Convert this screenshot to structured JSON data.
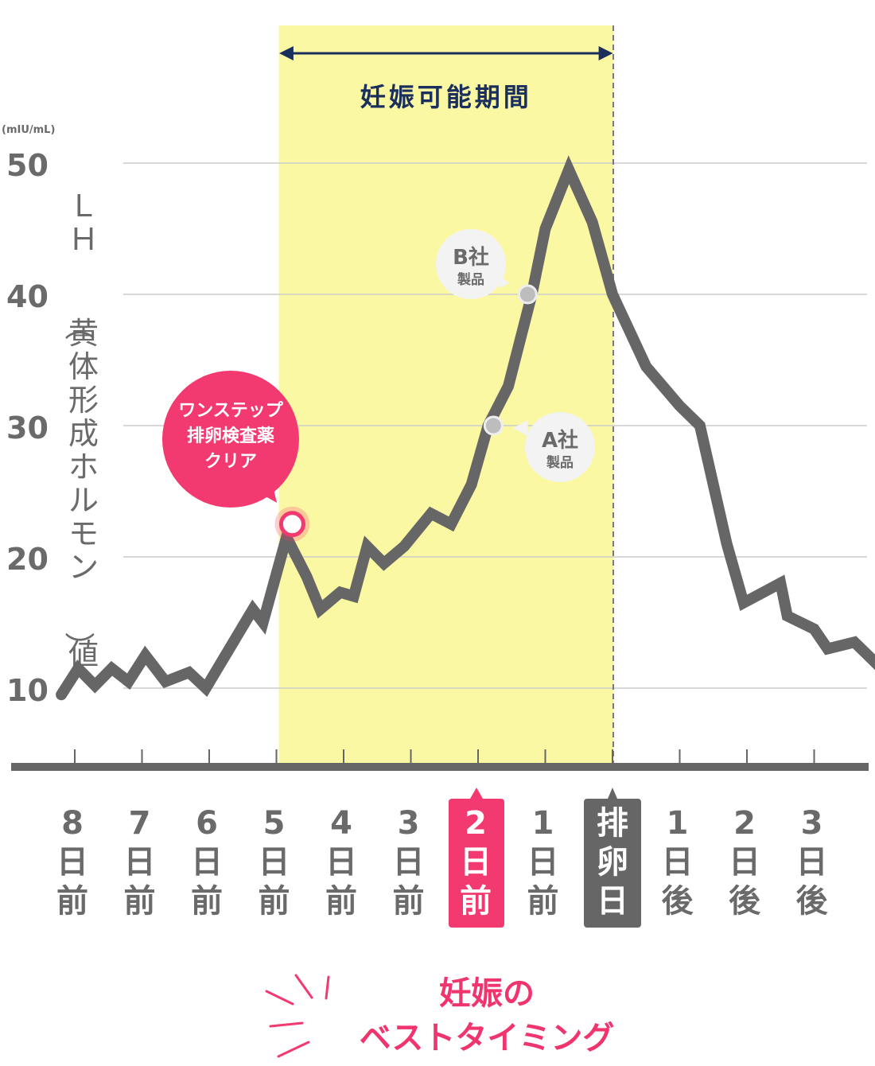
{
  "chart_data": {
    "type": "line",
    "title": "",
    "ylabel": "ＬＨ（黄体形成ホルモン）値",
    "yunit": "(mIU/mL)",
    "ylim": [
      5,
      50
    ],
    "yticks": [
      50,
      40,
      30,
      20,
      10
    ],
    "grid": true,
    "categories": [
      [
        "8",
        "日",
        "前"
      ],
      [
        "7",
        "日",
        "前"
      ],
      [
        "6",
        "日",
        "前"
      ],
      [
        "5",
        "日",
        "前"
      ],
      [
        "4",
        "日",
        "前"
      ],
      [
        "3",
        "日",
        "前"
      ],
      [
        "2",
        "日",
        "前"
      ],
      [
        "1",
        "日",
        "前"
      ],
      [
        "排",
        "卵",
        "日"
      ],
      [
        "1",
        "日",
        "後"
      ],
      [
        "2",
        "日",
        "後"
      ],
      [
        "3",
        "日",
        "後"
      ]
    ],
    "highlight_category_index": 6,
    "ovulation_category_index": 8,
    "series": [
      {
        "values": [
          [
            -0.2,
            9.5
          ],
          [
            0.05,
            11.5
          ],
          [
            0.3,
            10.2
          ],
          [
            0.55,
            11.5
          ],
          [
            0.8,
            10.5
          ],
          [
            1.05,
            12.5
          ],
          [
            1.35,
            10.5
          ],
          [
            1.7,
            11.2
          ],
          [
            1.95,
            10.0
          ],
          [
            2.3,
            13.0
          ],
          [
            2.65,
            16.0
          ],
          [
            2.8,
            15.0
          ],
          [
            3.15,
            21.5
          ],
          [
            3.45,
            18.5
          ],
          [
            3.65,
            16.0
          ],
          [
            3.95,
            17.3
          ],
          [
            4.15,
            17.0
          ],
          [
            4.35,
            20.8
          ],
          [
            4.6,
            19.5
          ],
          [
            4.9,
            20.8
          ],
          [
            5.3,
            23.3
          ],
          [
            5.6,
            22.5
          ],
          [
            5.9,
            25.5
          ],
          [
            6.15,
            30.0
          ],
          [
            6.45,
            33.0
          ],
          [
            6.8,
            40.0
          ],
          [
            7.0,
            45.0
          ],
          [
            7.35,
            49.5
          ],
          [
            7.7,
            45.5
          ],
          [
            8.0,
            40.0
          ],
          [
            8.5,
            34.5
          ],
          [
            9.0,
            31.5
          ],
          [
            9.3,
            30.0
          ],
          [
            9.7,
            21.0
          ],
          [
            9.95,
            16.5
          ],
          [
            10.5,
            18.0
          ],
          [
            10.6,
            15.5
          ],
          [
            11.0,
            14.5
          ],
          [
            11.2,
            13.0
          ],
          [
            11.6,
            13.5
          ],
          [
            12.0,
            11.5
          ]
        ]
      }
    ],
    "fertile_window": {
      "label": "妊娠可能期間",
      "from_index": 3,
      "to_index": 8
    },
    "annotations": {
      "one_step": {
        "lines": [
          "ワンステップ",
          "排卵検査薬",
          "クリア"
        ],
        "x": 3.2,
        "y": 22.5
      },
      "product_a": {
        "name": "A社",
        "sub": "製品",
        "x": 6.3,
        "y": 30.0
      },
      "product_b": {
        "name": "B社",
        "sub": "製品",
        "x": 6.75,
        "y": 40.0
      }
    },
    "timing_label": [
      "妊娠の",
      "ベストタイミング"
    ],
    "colors": {
      "line": "#666666",
      "band": "#fbf8a4",
      "pink": "#f23a70",
      "navy": "#1a2f5c",
      "grid": "#cccccc",
      "ovulation_box": "#666666",
      "product_bubble": "#f3f3f3"
    }
  }
}
